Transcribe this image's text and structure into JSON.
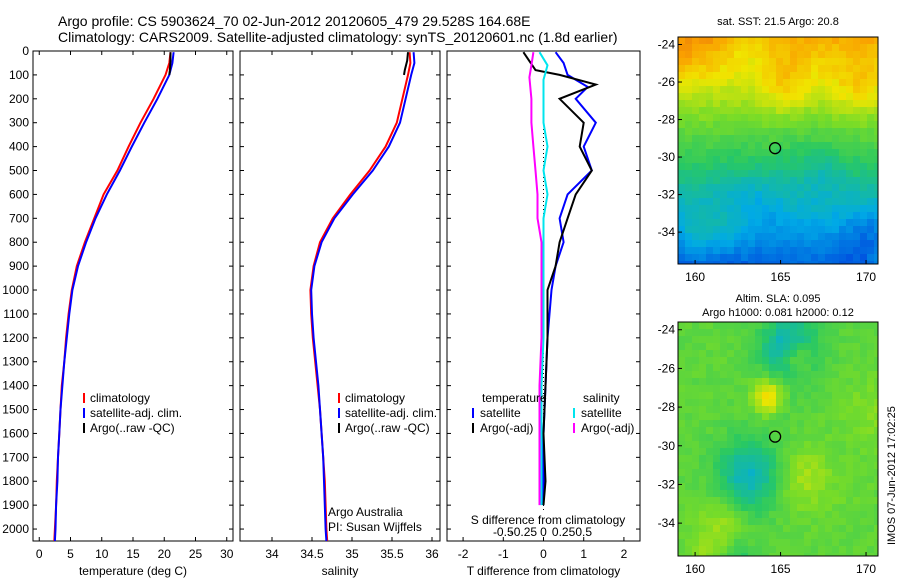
{
  "header": {
    "title_line1": "Argo profile: CS 5903624_70 02-Jun-2012 20120605_479 29.528S 164.68E",
    "title_line2": "Climatology: CARS2009. Satellite-adjusted climatology: synTS_20120601.nc (1.8d earlier)"
  },
  "stamp": "IMOS 07-Jun-2012 17:02:25",
  "colors": {
    "climatology": "#ff0000",
    "satellite": "#0000ff",
    "argo": "#000000",
    "salinity_satellite": "#00e5ee",
    "salinity_argo": "#ff00ff"
  },
  "chart_data": [
    {
      "id": "temperature",
      "type": "line",
      "xlabel": "temperature (deg C)",
      "ylabel": "",
      "xlim": [
        -1,
        31
      ],
      "ylim": [
        2050,
        0
      ],
      "xticks": [
        0,
        5,
        10,
        15,
        20,
        25,
        30
      ],
      "yticks": [
        0,
        100,
        200,
        300,
        400,
        500,
        600,
        700,
        800,
        900,
        1000,
        1100,
        1200,
        1300,
        1400,
        1500,
        1600,
        1700,
        1800,
        1900,
        2000
      ],
      "legend": [
        "climatology",
        "satellite-adj. clim.",
        "Argo(..raw -QC)"
      ],
      "series": [
        {
          "name": "climatology",
          "color": "#ff0000",
          "points": [
            [
              21.0,
              5
            ],
            [
              20.8,
              50
            ],
            [
              20.2,
              100
            ],
            [
              18.3,
              200
            ],
            [
              16.2,
              300
            ],
            [
              14.3,
              400
            ],
            [
              12.5,
              500
            ],
            [
              10.3,
              600
            ],
            [
              8.8,
              700
            ],
            [
              7.3,
              800
            ],
            [
              6.0,
              900
            ],
            [
              5.2,
              1000
            ],
            [
              4.7,
              1100
            ],
            [
              4.3,
              1200
            ],
            [
              4.0,
              1300
            ],
            [
              3.6,
              1400
            ],
            [
              3.4,
              1500
            ],
            [
              3.2,
              1600
            ],
            [
              3.0,
              1700
            ],
            [
              2.8,
              1800
            ],
            [
              2.7,
              1900
            ],
            [
              2.5,
              2000
            ],
            [
              2.4,
              2050
            ]
          ]
        },
        {
          "name": "satellite-adj. clim.",
          "color": "#0000ff",
          "points": [
            [
              21.5,
              5
            ],
            [
              21.3,
              50
            ],
            [
              20.8,
              100
            ],
            [
              18.9,
              200
            ],
            [
              16.8,
              300
            ],
            [
              14.8,
              400
            ],
            [
              12.9,
              500
            ],
            [
              10.8,
              600
            ],
            [
              9.0,
              700
            ],
            [
              7.5,
              800
            ],
            [
              6.2,
              900
            ],
            [
              5.3,
              1000
            ],
            [
              4.8,
              1100
            ],
            [
              4.4,
              1200
            ],
            [
              4.0,
              1300
            ],
            [
              3.7,
              1400
            ],
            [
              3.4,
              1500
            ],
            [
              3.2,
              1600
            ],
            [
              3.0,
              1700
            ],
            [
              2.9,
              1800
            ],
            [
              2.7,
              1900
            ],
            [
              2.6,
              2000
            ],
            [
              2.5,
              2050
            ]
          ]
        },
        {
          "name": "Argo(..raw -QC)",
          "color": "#000000",
          "points": [
            [
              21.0,
              5
            ],
            [
              21.0,
              40
            ],
            [
              20.9,
              80
            ],
            [
              20.8,
              100
            ]
          ]
        }
      ]
    },
    {
      "id": "salinity",
      "type": "line",
      "xlabel": "salinity",
      "ylabel": "",
      "xlim": [
        33.6,
        36.1
      ],
      "ylim": [
        2050,
        0
      ],
      "xticks": [
        34,
        34.5,
        35,
        35.5,
        36
      ],
      "legend": [
        "climatology",
        "satellite-adj. clim.",
        "Argo(..raw -QC)"
      ],
      "annotation": [
        "Argo Australia",
        "PI: Susan Wijffels"
      ],
      "series": [
        {
          "name": "climatology",
          "color": "#ff0000",
          "points": [
            [
              35.72,
              5
            ],
            [
              35.73,
              50
            ],
            [
              35.7,
              100
            ],
            [
              35.63,
              200
            ],
            [
              35.56,
              300
            ],
            [
              35.42,
              400
            ],
            [
              35.22,
              500
            ],
            [
              34.98,
              600
            ],
            [
              34.76,
              700
            ],
            [
              34.6,
              800
            ],
            [
              34.52,
              900
            ],
            [
              34.48,
              1000
            ],
            [
              34.49,
              1100
            ],
            [
              34.51,
              1200
            ],
            [
              34.54,
              1300
            ],
            [
              34.57,
              1400
            ],
            [
              34.6,
              1500
            ],
            [
              34.62,
              1600
            ],
            [
              34.64,
              1700
            ],
            [
              34.66,
              1800
            ],
            [
              34.67,
              1900
            ],
            [
              34.68,
              2000
            ],
            [
              34.69,
              2050
            ]
          ]
        },
        {
          "name": "satellite-adj. clim.",
          "color": "#0000ff",
          "points": [
            [
              35.77,
              5
            ],
            [
              35.78,
              50
            ],
            [
              35.74,
              100
            ],
            [
              35.67,
              200
            ],
            [
              35.6,
              300
            ],
            [
              35.46,
              400
            ],
            [
              35.26,
              500
            ],
            [
              35.01,
              600
            ],
            [
              34.78,
              700
            ],
            [
              34.62,
              800
            ],
            [
              34.53,
              900
            ],
            [
              34.49,
              1000
            ],
            [
              34.5,
              1100
            ],
            [
              34.52,
              1200
            ],
            [
              34.55,
              1300
            ],
            [
              34.58,
              1400
            ],
            [
              34.6,
              1500
            ],
            [
              34.62,
              1600
            ],
            [
              34.64,
              1700
            ],
            [
              34.65,
              1800
            ],
            [
              34.66,
              1900
            ],
            [
              34.67,
              2000
            ],
            [
              34.68,
              2050
            ]
          ]
        },
        {
          "name": "Argo(..raw -QC)",
          "color": "#000000",
          "points": [
            [
              35.7,
              5
            ],
            [
              35.69,
              40
            ],
            [
              35.66,
              80
            ],
            [
              35.65,
              100
            ]
          ]
        }
      ]
    },
    {
      "id": "difference",
      "type": "line",
      "xlabel": "T difference from climatology",
      "xlabel_top": "S difference from climatology",
      "xlim": [
        -2.4,
        2.4
      ],
      "ylim": [
        2050,
        0
      ],
      "xticks_T": [
        -2,
        -1,
        0,
        1,
        2
      ],
      "xticks_S": [
        "-0.5",
        "-0.25",
        "0",
        "0.25",
        "0.5"
      ],
      "xticks_S_pos": [
        -1.0,
        -0.5,
        0,
        0.5,
        1.0
      ],
      "legend_left_title": "temperature",
      "legend_right_title": "salinity",
      "legend_left": [
        "satellite",
        "Argo(-adj)"
      ],
      "legend_right": [
        "satellite",
        "Argo(-adj)"
      ],
      "series": [
        {
          "name": "temperature satellite",
          "color": "#0000ff",
          "points": [
            [
              0.3,
              5
            ],
            [
              0.5,
              50
            ],
            [
              0.6,
              100
            ],
            [
              1.1,
              150
            ],
            [
              0.8,
              200
            ],
            [
              1.3,
              300
            ],
            [
              1.0,
              400
            ],
            [
              1.2,
              500
            ],
            [
              0.6,
              600
            ],
            [
              0.4,
              700
            ],
            [
              0.5,
              800
            ],
            [
              0.3,
              900
            ],
            [
              0.2,
              1000
            ],
            [
              0.1,
              1200
            ],
            [
              0.05,
              1400
            ],
            [
              0.0,
              1600
            ],
            [
              0.0,
              1800
            ],
            [
              0.0,
              1900
            ]
          ]
        },
        {
          "name": "temperature Argo(-adj)",
          "color": "#000000",
          "points": [
            [
              -0.5,
              5
            ],
            [
              -0.2,
              80
            ],
            [
              0.4,
              100
            ],
            [
              1.3,
              140
            ],
            [
              0.4,
              200
            ],
            [
              1.0,
              300
            ],
            [
              0.9,
              400
            ],
            [
              1.2,
              500
            ],
            [
              0.8,
              600
            ],
            [
              0.6,
              700
            ],
            [
              0.4,
              800
            ],
            [
              0.3,
              900
            ],
            [
              0.1,
              1000
            ],
            [
              0.1,
              1200
            ],
            [
              0.05,
              1400
            ],
            [
              0.0,
              1600
            ],
            [
              0.05,
              1800
            ],
            [
              0.0,
              1900
            ]
          ]
        },
        {
          "name": "salinity satellite",
          "color": "#00e5ee",
          "points": [
            [
              -0.1,
              5
            ],
            [
              0.1,
              60
            ],
            [
              0.0,
              120
            ],
            [
              0.0,
              200
            ],
            [
              0.0,
              300
            ],
            [
              0.1,
              400
            ],
            [
              0.0,
              500
            ],
            [
              0.1,
              600
            ],
            [
              0.0,
              700
            ],
            [
              0.0,
              800
            ],
            [
              0.0,
              900
            ],
            [
              0.0,
              1000
            ],
            [
              0.0,
              1200
            ],
            [
              -0.05,
              1400
            ],
            [
              -0.05,
              1600
            ],
            [
              -0.05,
              1800
            ],
            [
              -0.05,
              1900
            ]
          ]
        },
        {
          "name": "salinity Argo(-adj)",
          "color": "#ff00ff",
          "points": [
            [
              -0.25,
              5
            ],
            [
              -0.3,
              60
            ],
            [
              -0.35,
              110
            ],
            [
              -0.3,
              200
            ],
            [
              -0.3,
              300
            ],
            [
              -0.25,
              400
            ],
            [
              -0.2,
              500
            ],
            [
              -0.15,
              600
            ],
            [
              -0.15,
              700
            ],
            [
              -0.05,
              800
            ],
            [
              -0.05,
              900
            ],
            [
              -0.05,
              1000
            ],
            [
              -0.05,
              1200
            ],
            [
              -0.1,
              1400
            ],
            [
              -0.1,
              1600
            ],
            [
              -0.1,
              1800
            ],
            [
              -0.1,
              1900
            ]
          ]
        }
      ]
    },
    {
      "id": "sst_map",
      "type": "heatmap",
      "title": "sat. SST: 21.5 Argo: 20.8",
      "xticks": [
        160,
        165,
        170
      ],
      "yticks": [
        -24,
        -26,
        -28,
        -30,
        -32,
        -34
      ],
      "xlim": [
        159,
        170.7
      ],
      "ylim": [
        -35.7,
        -23.6
      ],
      "float_position": [
        164.68,
        -29.528
      ]
    },
    {
      "id": "sla_map",
      "type": "heatmap",
      "title_line1": "Altim. SLA: 0.095",
      "title_line2": "Argo h1000: 0.081 h2000: 0.12",
      "xticks": [
        160,
        165,
        170
      ],
      "yticks": [
        -24,
        -26,
        -28,
        -30,
        -32,
        -34
      ],
      "xlim": [
        159,
        170.7
      ],
      "ylim": [
        -35.7,
        -23.6
      ],
      "float_position": [
        164.68,
        -29.528
      ]
    }
  ]
}
